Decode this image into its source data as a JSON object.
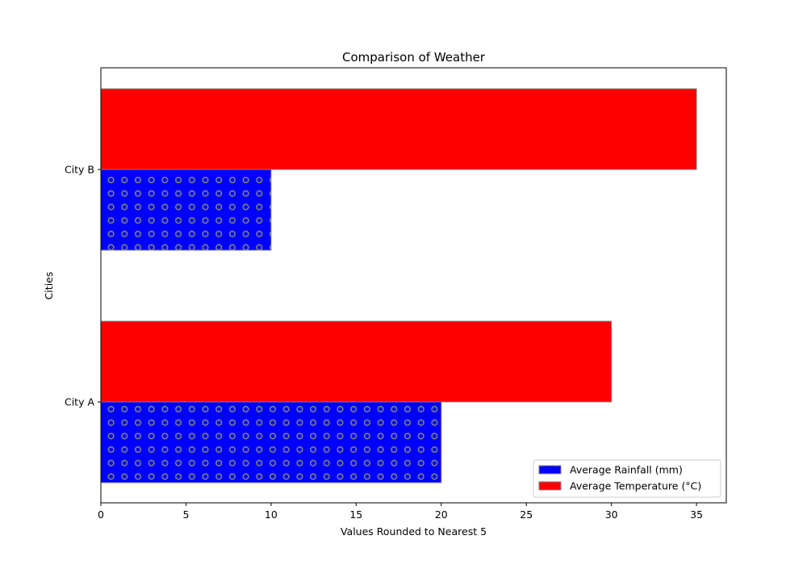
{
  "chart_data": {
    "type": "bar",
    "orientation": "horizontal",
    "title": "Comparison of Weather",
    "xlabel": "Values Rounded to Nearest 5",
    "ylabel": "Cities",
    "categories": [
      "City A",
      "City B"
    ],
    "xlim": [
      0,
      36.75
    ],
    "xticks": [
      0,
      5,
      10,
      15,
      20,
      25,
      30,
      35
    ],
    "grid": false,
    "legend_position": "lower-right",
    "series": [
      {
        "name": "Average Rainfall (mm)",
        "values": [
          20,
          10
        ],
        "color": "#0000ff",
        "hatch": "circles",
        "hatch_color": "#808080"
      },
      {
        "name": "Average Temperature (°C)",
        "values": [
          30,
          35
        ],
        "color": "#ff0000"
      }
    ]
  }
}
